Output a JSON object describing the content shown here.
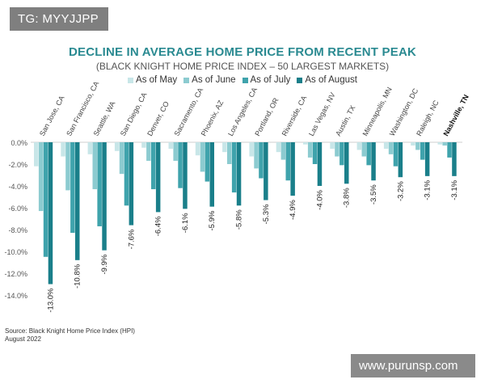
{
  "tag_label": "TG: MYYJJPP",
  "watermark": "www.purunsp.com",
  "source": {
    "line1": "Source: Black Knight Home Price Index (HPI)",
    "line2": "August 2022"
  },
  "colors": {
    "title": "#2a8a91",
    "series": [
      "#c8e6e8",
      "#8ccbd0",
      "#3fa3ac",
      "#1a7f8a"
    ],
    "axis_text": "#555555"
  },
  "chart_data": {
    "type": "bar",
    "title": "DECLINE IN AVERAGE HOME PRICE FROM RECENT PEAK",
    "subtitle": "(BLACK KNIGHT HOME PRICE INDEX – 50 LARGEST MARKETS)",
    "categories": [
      "San Jose, CA",
      "San Francisco, CA",
      "Seattle, WA",
      "San Diego, CA",
      "Denver, CO",
      "Sacramento, CA",
      "Phoenix, AZ",
      "Los Angeles, CA",
      "Portland, OR",
      "Riverside, CA",
      "Las Vegas, NV",
      "Austin, TX",
      "Minneapolis, MN",
      "Washington, DC",
      "Raleigh, NC",
      "Nashville, TN"
    ],
    "highlight_category": "Nashville, TN",
    "series": [
      {
        "name": "As of May",
        "values": [
          -2.2,
          -1.3,
          -1.1,
          -0.8,
          -0.5,
          -0.6,
          -1.2,
          -0.9,
          -1.3,
          -0.9,
          -0.2,
          -0.6,
          -0.7,
          -0.6,
          -0.3,
          -0.2
        ]
      },
      {
        "name": "As of June",
        "values": [
          -6.3,
          -4.4,
          -4.3,
          -2.9,
          -1.7,
          -1.7,
          -2.7,
          -2.0,
          -2.4,
          -1.6,
          -1.4,
          -1.3,
          -1.3,
          -1.1,
          -0.7,
          -0.3
        ]
      },
      {
        "name": "As of July",
        "values": [
          -10.5,
          -8.3,
          -7.7,
          -5.8,
          -4.3,
          -4.2,
          -3.6,
          -4.6,
          -3.3,
          -3.5,
          -2.0,
          -2.1,
          -2.1,
          -2.2,
          -1.6,
          -1.4
        ]
      },
      {
        "name": "As of August",
        "values": [
          -13.0,
          -10.8,
          -9.9,
          -7.6,
          -6.4,
          -6.1,
          -5.9,
          -5.8,
          -5.3,
          -4.9,
          -4.0,
          -3.8,
          -3.5,
          -3.2,
          -3.1,
          -3.1
        ]
      }
    ],
    "data_labels": [
      "-13.0%",
      "-10.8%",
      "-9.9%",
      "-7.6%",
      "-6.4%",
      "-6.1%",
      "-5.9%",
      "-5.8%",
      "-5.3%",
      "-4.9%",
      "-4.0%",
      "-3.8%",
      "-3.5%",
      "-3.2%",
      "-3.1%",
      "-3.1%"
    ],
    "y_ticks": [
      "0.0%",
      "-2.0%",
      "-4.0%",
      "-6.0%",
      "-8.0%",
      "-10.0%",
      "-12.0%",
      "-14.0%"
    ],
    "ylim": [
      -14,
      0
    ],
    "xlabel": "",
    "ylabel": "",
    "grid": false,
    "legend_position": "top"
  }
}
